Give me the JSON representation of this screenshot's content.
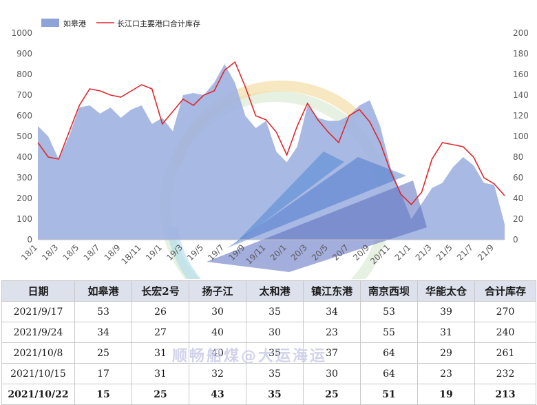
{
  "chart_data": {
    "type": "area",
    "legend": [
      {
        "name": "如皋港",
        "color": "#8ea3d8"
      },
      {
        "name": "长江口主要港口合计库存",
        "color": "#e0262a"
      }
    ],
    "legend_position": "top-left",
    "left_axis": {
      "min": 0,
      "max": 1000,
      "ticks": [
        "0",
        "100",
        "200",
        "300",
        "400",
        "500",
        "600",
        "700",
        "800",
        "900",
        "1000"
      ]
    },
    "right_axis": {
      "min": 0,
      "max": 200,
      "ticks": [
        "0",
        "20",
        "40",
        "60",
        "80",
        "100",
        "120",
        "140",
        "160",
        "180",
        "200"
      ]
    },
    "x_ticks": [
      "18/1",
      "18/3",
      "18/5",
      "18/7",
      "18/9",
      "18/11",
      "19/1",
      "19/3",
      "19/5",
      "19/7",
      "19/9",
      "19/11",
      "20/1",
      "20/3",
      "20/5",
      "20/7",
      "20/9",
      "20/11",
      "21/1",
      "21/3",
      "21/5",
      "21/7",
      "21/9"
    ],
    "x_start": "2018/1",
    "x_end": "2021/10",
    "area_series": {
      "name": "如皋港",
      "axis": "right",
      "points": [
        [
          "2018/1",
          110
        ],
        [
          "2018/2",
          100
        ],
        [
          "2018/3",
          78
        ],
        [
          "2018/4",
          100
        ],
        [
          "2018/5",
          128
        ],
        [
          "2018/6",
          130
        ],
        [
          "2018/7",
          122
        ],
        [
          "2018/8",
          128
        ],
        [
          "2018/9",
          118
        ],
        [
          "2018/10",
          126
        ],
        [
          "2018/11",
          130
        ],
        [
          "2018/12",
          112
        ],
        [
          "2019/1",
          118
        ],
        [
          "2019/2",
          105
        ],
        [
          "2019/3",
          140
        ],
        [
          "2019/4",
          142
        ],
        [
          "2019/5",
          140
        ],
        [
          "2019/6",
          152
        ],
        [
          "2019/7",
          170
        ],
        [
          "2019/8",
          152
        ],
        [
          "2019/9",
          120
        ],
        [
          "2019/10",
          108
        ],
        [
          "2019/11",
          115
        ],
        [
          "2019/12",
          85
        ],
        [
          "2020/1",
          75
        ],
        [
          "2020/2",
          90
        ],
        [
          "2020/3",
          130
        ],
        [
          "2020/4",
          118
        ],
        [
          "2020/5",
          115
        ],
        [
          "2020/6",
          115
        ],
        [
          "2020/7",
          120
        ],
        [
          "2020/8",
          130
        ],
        [
          "2020/9",
          135
        ],
        [
          "2020/10",
          110
        ],
        [
          "2020/11",
          70
        ],
        [
          "2020/12",
          45
        ],
        [
          "2021/1",
          20
        ],
        [
          "2021/2",
          35
        ],
        [
          "2021/3",
          50
        ],
        [
          "2021/4",
          55
        ],
        [
          "2021/5",
          70
        ],
        [
          "2021/6",
          80
        ],
        [
          "2021/7",
          72
        ],
        [
          "2021/8",
          55
        ],
        [
          "2021/9",
          53
        ],
        [
          "2021/10",
          15
        ]
      ]
    },
    "line_series": {
      "name": "长江口主要港口合计库存",
      "axis": "left",
      "points": [
        [
          "2018/1",
          470
        ],
        [
          "2018/2",
          400
        ],
        [
          "2018/3",
          390
        ],
        [
          "2018/4",
          520
        ],
        [
          "2018/5",
          650
        ],
        [
          "2018/6",
          730
        ],
        [
          "2018/7",
          720
        ],
        [
          "2018/8",
          700
        ],
        [
          "2018/9",
          690
        ],
        [
          "2018/10",
          720
        ],
        [
          "2018/11",
          750
        ],
        [
          "2018/12",
          730
        ],
        [
          "2019/1",
          560
        ],
        [
          "2019/2",
          620
        ],
        [
          "2019/3",
          680
        ],
        [
          "2019/4",
          650
        ],
        [
          "2019/5",
          700
        ],
        [
          "2019/6",
          720
        ],
        [
          "2019/7",
          820
        ],
        [
          "2019/8",
          860
        ],
        [
          "2019/9",
          740
        ],
        [
          "2019/10",
          600
        ],
        [
          "2019/11",
          580
        ],
        [
          "2019/12",
          520
        ],
        [
          "2020/1",
          410
        ],
        [
          "2020/2",
          550
        ],
        [
          "2020/3",
          660
        ],
        [
          "2020/4",
          580
        ],
        [
          "2020/5",
          520
        ],
        [
          "2020/6",
          470
        ],
        [
          "2020/7",
          600
        ],
        [
          "2020/8",
          630
        ],
        [
          "2020/9",
          570
        ],
        [
          "2020/10",
          470
        ],
        [
          "2020/11",
          330
        ],
        [
          "2020/12",
          220
        ],
        [
          "2021/1",
          170
        ],
        [
          "2021/2",
          230
        ],
        [
          "2021/3",
          390
        ],
        [
          "2021/4",
          470
        ],
        [
          "2021/5",
          460
        ],
        [
          "2021/6",
          450
        ],
        [
          "2021/7",
          400
        ],
        [
          "2021/8",
          300
        ],
        [
          "2021/9",
          270
        ],
        [
          "2021/10",
          213
        ]
      ]
    }
  },
  "watermark": "顺畅船煤@大运海运",
  "table": {
    "headers": [
      "日期",
      "如皋港",
      "长宏2号",
      "扬子江",
      "太和港",
      "镇江东港",
      "南京西坝",
      "华能太仓",
      "合计库存"
    ],
    "rows": [
      [
        "2021/9/17",
        "53",
        "26",
        "30",
        "35",
        "34",
        "53",
        "39",
        "270"
      ],
      [
        "2021/9/24",
        "34",
        "27",
        "40",
        "30",
        "23",
        "55",
        "31",
        "240"
      ],
      [
        "2021/10/8",
        "25",
        "31",
        "40",
        "35",
        "37",
        "64",
        "29",
        "261"
      ],
      [
        "2021/10/15",
        "17",
        "31",
        "32",
        "35",
        "30",
        "64",
        "23",
        "232"
      ],
      [
        "2021/10/22",
        "15",
        "25",
        "43",
        "35",
        "25",
        "51",
        "19",
        "213"
      ]
    ]
  }
}
